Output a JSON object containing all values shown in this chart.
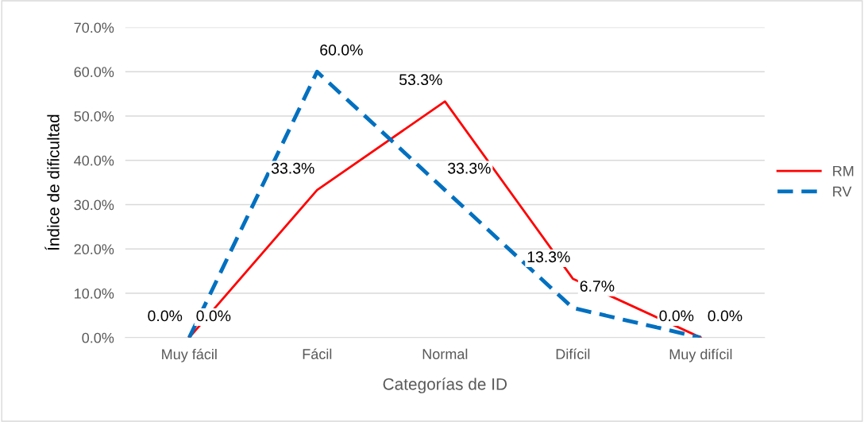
{
  "chart_data": {
    "type": "line",
    "xlabel": "Categorías de ID",
    "ylabel": "Índice de dificultad",
    "categories": [
      "Muy fácil",
      "Fácil",
      "Normal",
      "Difícil",
      "Muy difícil"
    ],
    "series": [
      {
        "name": "RM",
        "color": "#ff0000",
        "line_style": "solid",
        "values": [
          0,
          33.3,
          53.3,
          13.3,
          0
        ],
        "value_labels": [
          "0.0%",
          "33.3%",
          "53.3%",
          "13.3%",
          "0.0%"
        ]
      },
      {
        "name": "RV",
        "color": "#0070c0",
        "line_style": "dashed",
        "values": [
          0,
          60,
          33.3,
          6.7,
          0
        ],
        "value_labels": [
          "0.0%",
          "60.0%",
          "33.3%",
          "6.7%",
          "0.0%"
        ]
      }
    ],
    "ylim": [
      0,
      70
    ],
    "yticks": [
      {
        "value": 0,
        "label": "0.0%"
      },
      {
        "value": 10,
        "label": "10.0%"
      },
      {
        "value": 20,
        "label": "20.0%"
      },
      {
        "value": 30,
        "label": "30.0%"
      },
      {
        "value": 40,
        "label": "40.0%"
      },
      {
        "value": 50,
        "label": "50.0%"
      },
      {
        "value": 60,
        "label": "60.0%"
      },
      {
        "value": 70,
        "label": "70.0%"
      }
    ],
    "grid": "y",
    "legend": "right",
    "marker": "none"
  }
}
